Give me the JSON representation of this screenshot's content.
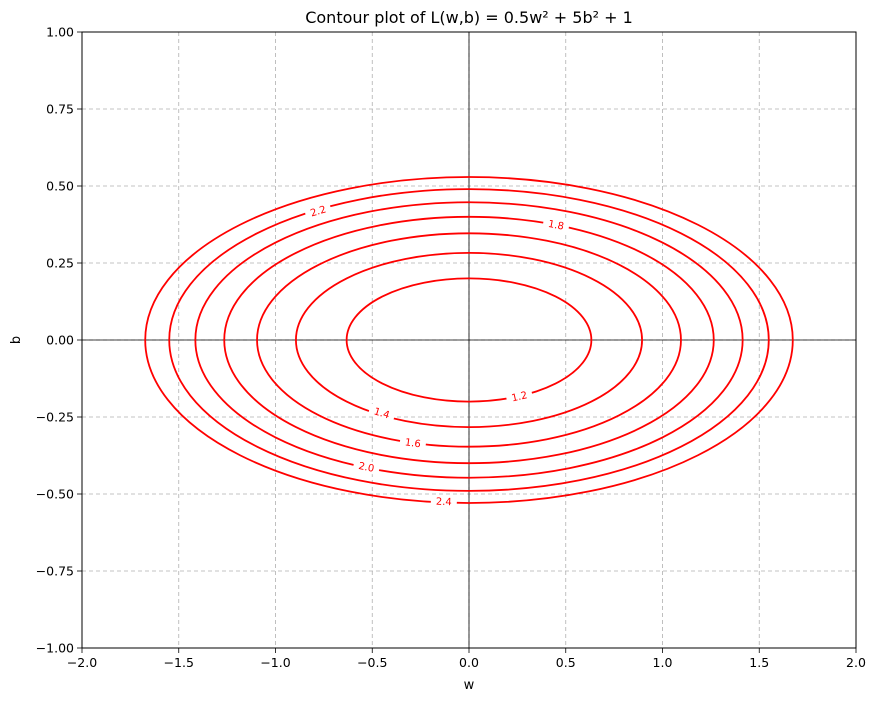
{
  "chart_data": {
    "type": "contour",
    "title": "Contour plot of L(w,b) = 0.5w² + 5b² + 1",
    "xlabel": "w",
    "ylabel": "b",
    "xlim": [
      -2.0,
      2.0
    ],
    "ylim": [
      -1.0,
      1.0
    ],
    "x_ticks": [
      -2.0,
      -1.5,
      -1.0,
      -0.5,
      0.0,
      0.5,
      1.0,
      1.5,
      2.0
    ],
    "x_tick_labels": [
      "−2.0",
      "−1.5",
      "−1.0",
      "−0.5",
      "0.0",
      "0.5",
      "1.0",
      "1.5",
      "2.0"
    ],
    "y_ticks": [
      -1.0,
      -0.75,
      -0.5,
      -0.25,
      0.0,
      0.25,
      0.5,
      0.75,
      1.0
    ],
    "y_tick_labels": [
      "−1.00",
      "−0.75",
      "−0.50",
      "−0.25",
      "0.00",
      "0.25",
      "0.50",
      "0.75",
      "1.00"
    ],
    "grid": true,
    "axis_lines_through_origin": true,
    "line_color": "#ff0000",
    "function": {
      "w_coef": 0.5,
      "b_coef": 5,
      "constant": 1
    },
    "levels": [
      1.2,
      1.4,
      1.6,
      1.8,
      2.0,
      2.2,
      2.4
    ],
    "level_labels": [
      {
        "text": "1.2",
        "level": 1.2,
        "w": 0.26,
        "b": -0.183
      },
      {
        "text": "1.4",
        "level": 1.4,
        "w": -0.45,
        "b": -0.237
      },
      {
        "text": "1.6",
        "level": 1.6,
        "w": -0.29,
        "b": -0.334
      },
      {
        "text": "1.8",
        "level": 1.8,
        "w": 0.45,
        "b": 0.374
      },
      {
        "text": "2.0",
        "level": 2.0,
        "w": -0.53,
        "b": -0.412
      },
      {
        "text": "2.2",
        "level": 2.2,
        "w": -0.78,
        "b": 0.419
      },
      {
        "text": "2.4",
        "level": 2.4,
        "w": -0.13,
        "b": -0.524
      }
    ]
  }
}
